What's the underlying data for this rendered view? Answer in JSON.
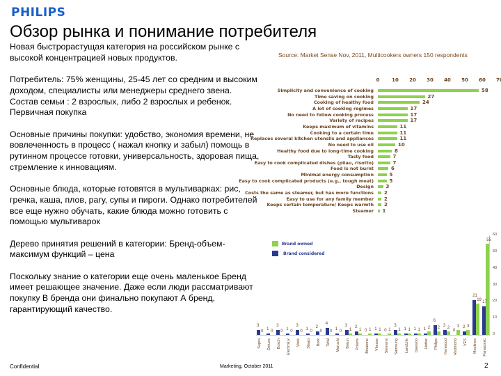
{
  "header": {
    "logo": "PHILIPS",
    "title": "Обзор рынка и понимание потребителя"
  },
  "body_paragraphs": [
    "Новая быстрорастущая категория на российском рынке с высокой концентрацией новых продуктов.",
    "Потребитель: 75% женщины, 25-45 лет со средним и высоким доходом, специалисты или менеджеры среднего звена. Состав семьи : 2 взрослых, либо 2 взрослых и ребенок. Первичная покупка",
    "Основные причины покупки: удобство, экономия времени, не вовлеченность в процесс ( нажал кнопку и забыл) помощь в рутинном процессе готовки, универсальность, здоровая пища, стремление к инновациям.",
    "Основные блюда, которые готовятся в мультиварках: рис, гречка, каша, плов, рагу, супы и пироги. Однако потребителей все еще нужно обучать, какие блюда можно готовить с помощью мультиварок",
    "Дерево принятия решений в категории: Бренд-объем-максимум функций – цена",
    "Поскольку знание о категории еще очень маленькое Бренд имеет решающее значение. Даже если люди рассматривают покупку В бренда они финально покупают А бренд, гарантирующий качество."
  ],
  "source": "Source: Market Sense Nov, 2011,  Multicookers owners 150 respondents",
  "footer": {
    "left": "Confidential",
    "center": "Marketing, October 2011",
    "page": "2"
  },
  "colors": {
    "owned": "#8fd14f",
    "considered": "#2b3a8f",
    "logo": "#1a5fc8"
  },
  "chart_data": [
    {
      "type": "bar",
      "orientation": "horizontal",
      "xlim": [
        0,
        70
      ],
      "ticks": [
        "0",
        "10",
        "20",
        "30",
        "40",
        "50",
        "60",
        "70"
      ],
      "categories": [
        "Simplicity and convenience of cooking",
        "Time saving on cooking",
        "Cooking of healthy food",
        "A lot of cooking regimes",
        "No need to follow cooking process",
        "Variety of recipes",
        "Keeps maximum of vitamins",
        "Cooking to a certain time",
        "Replaces several kitchen utensils and appliances",
        "No need to use oil",
        "Healthy food due to long-time cooking",
        "Tasty food",
        "Easy to cook complicated dishes (pilau, risotto)",
        "Food is not burnt",
        "Minimal energy consumption",
        "Easy to cook complicated products (e.g., tough meat)",
        "Design",
        "Costs the same as steamer, but has more functions",
        "Easy to use for any family member",
        "Keeps certain temperature/ Keeps warmth",
        "Steamer"
      ],
      "values": [
        58,
        27,
        24,
        17,
        17,
        17,
        11,
        11,
        11,
        10,
        8,
        7,
        7,
        6,
        5,
        5,
        3,
        2,
        2,
        2,
        1
      ]
    },
    {
      "type": "bar",
      "orientation": "vertical",
      "ylim": [
        0,
        60
      ],
      "yticks": [
        "0",
        "10",
        "20",
        "30",
        "40",
        "50",
        "60"
      ],
      "legend": "top-left",
      "categories": [
        "Supra",
        "Deluxe",
        "Bosch",
        "Electrolux",
        "Vitek",
        "Sharp",
        "Bork",
        "Tefal",
        "Maruchi",
        "Braun",
        "Polaris",
        "Binatone",
        "Vitesse",
        "Siemens",
        "Samsung",
        "LandLife",
        "Daewoo",
        "Hotter",
        "Philips",
        "Kenwood",
        "Redmond",
        "VES",
        "Moulinex",
        "Panasonic"
      ],
      "series": [
        {
          "name": "Brand considered",
          "values": [
            3,
            1,
            3,
            1,
            3,
            1,
            2,
            4,
            1,
            3,
            2,
            0,
            1,
            0,
            3,
            1,
            1,
            1,
            6,
            3,
            0,
            2,
            21,
            17
          ]
        },
        {
          "name": "Brand owned",
          "values": [
            0,
            0,
            0,
            0,
            0,
            0,
            0,
            0,
            0,
            1,
            1,
            1,
            1,
            1,
            1,
            1,
            1,
            2,
            2,
            2,
            3,
            3,
            19,
            55
          ]
        }
      ]
    }
  ]
}
